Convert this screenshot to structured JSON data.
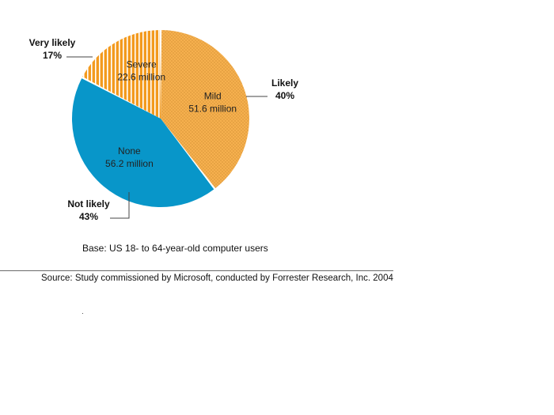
{
  "chart_data": {
    "type": "pie",
    "slices": [
      {
        "name": "Mild",
        "value_text": "51.6 million",
        "value_millions": 51.6,
        "color": "#F6B04E",
        "pattern": "dots",
        "text_color": "#222222"
      },
      {
        "name": "None",
        "value_text": "56.2 million",
        "value_millions": 56.2,
        "color": "#0896C9",
        "pattern": "none",
        "text_color": "#222222"
      },
      {
        "name": "Severe",
        "value_text": "22.6 million",
        "value_millions": 22.6,
        "color": "#F39A1E",
        "pattern": "stripes",
        "text_color": "#222222"
      }
    ],
    "callouts": [
      {
        "label": "Likely",
        "percent": "40%"
      },
      {
        "label": "Not likely",
        "percent": "43%"
      },
      {
        "label": "Very likely",
        "percent": "17%"
      }
    ]
  },
  "notes": {
    "base": "Base: US 18- to 64-year-old computer users",
    "source": "Source: Study commissioned by Microsoft, conducted by Forrester Research, Inc. 2004"
  }
}
